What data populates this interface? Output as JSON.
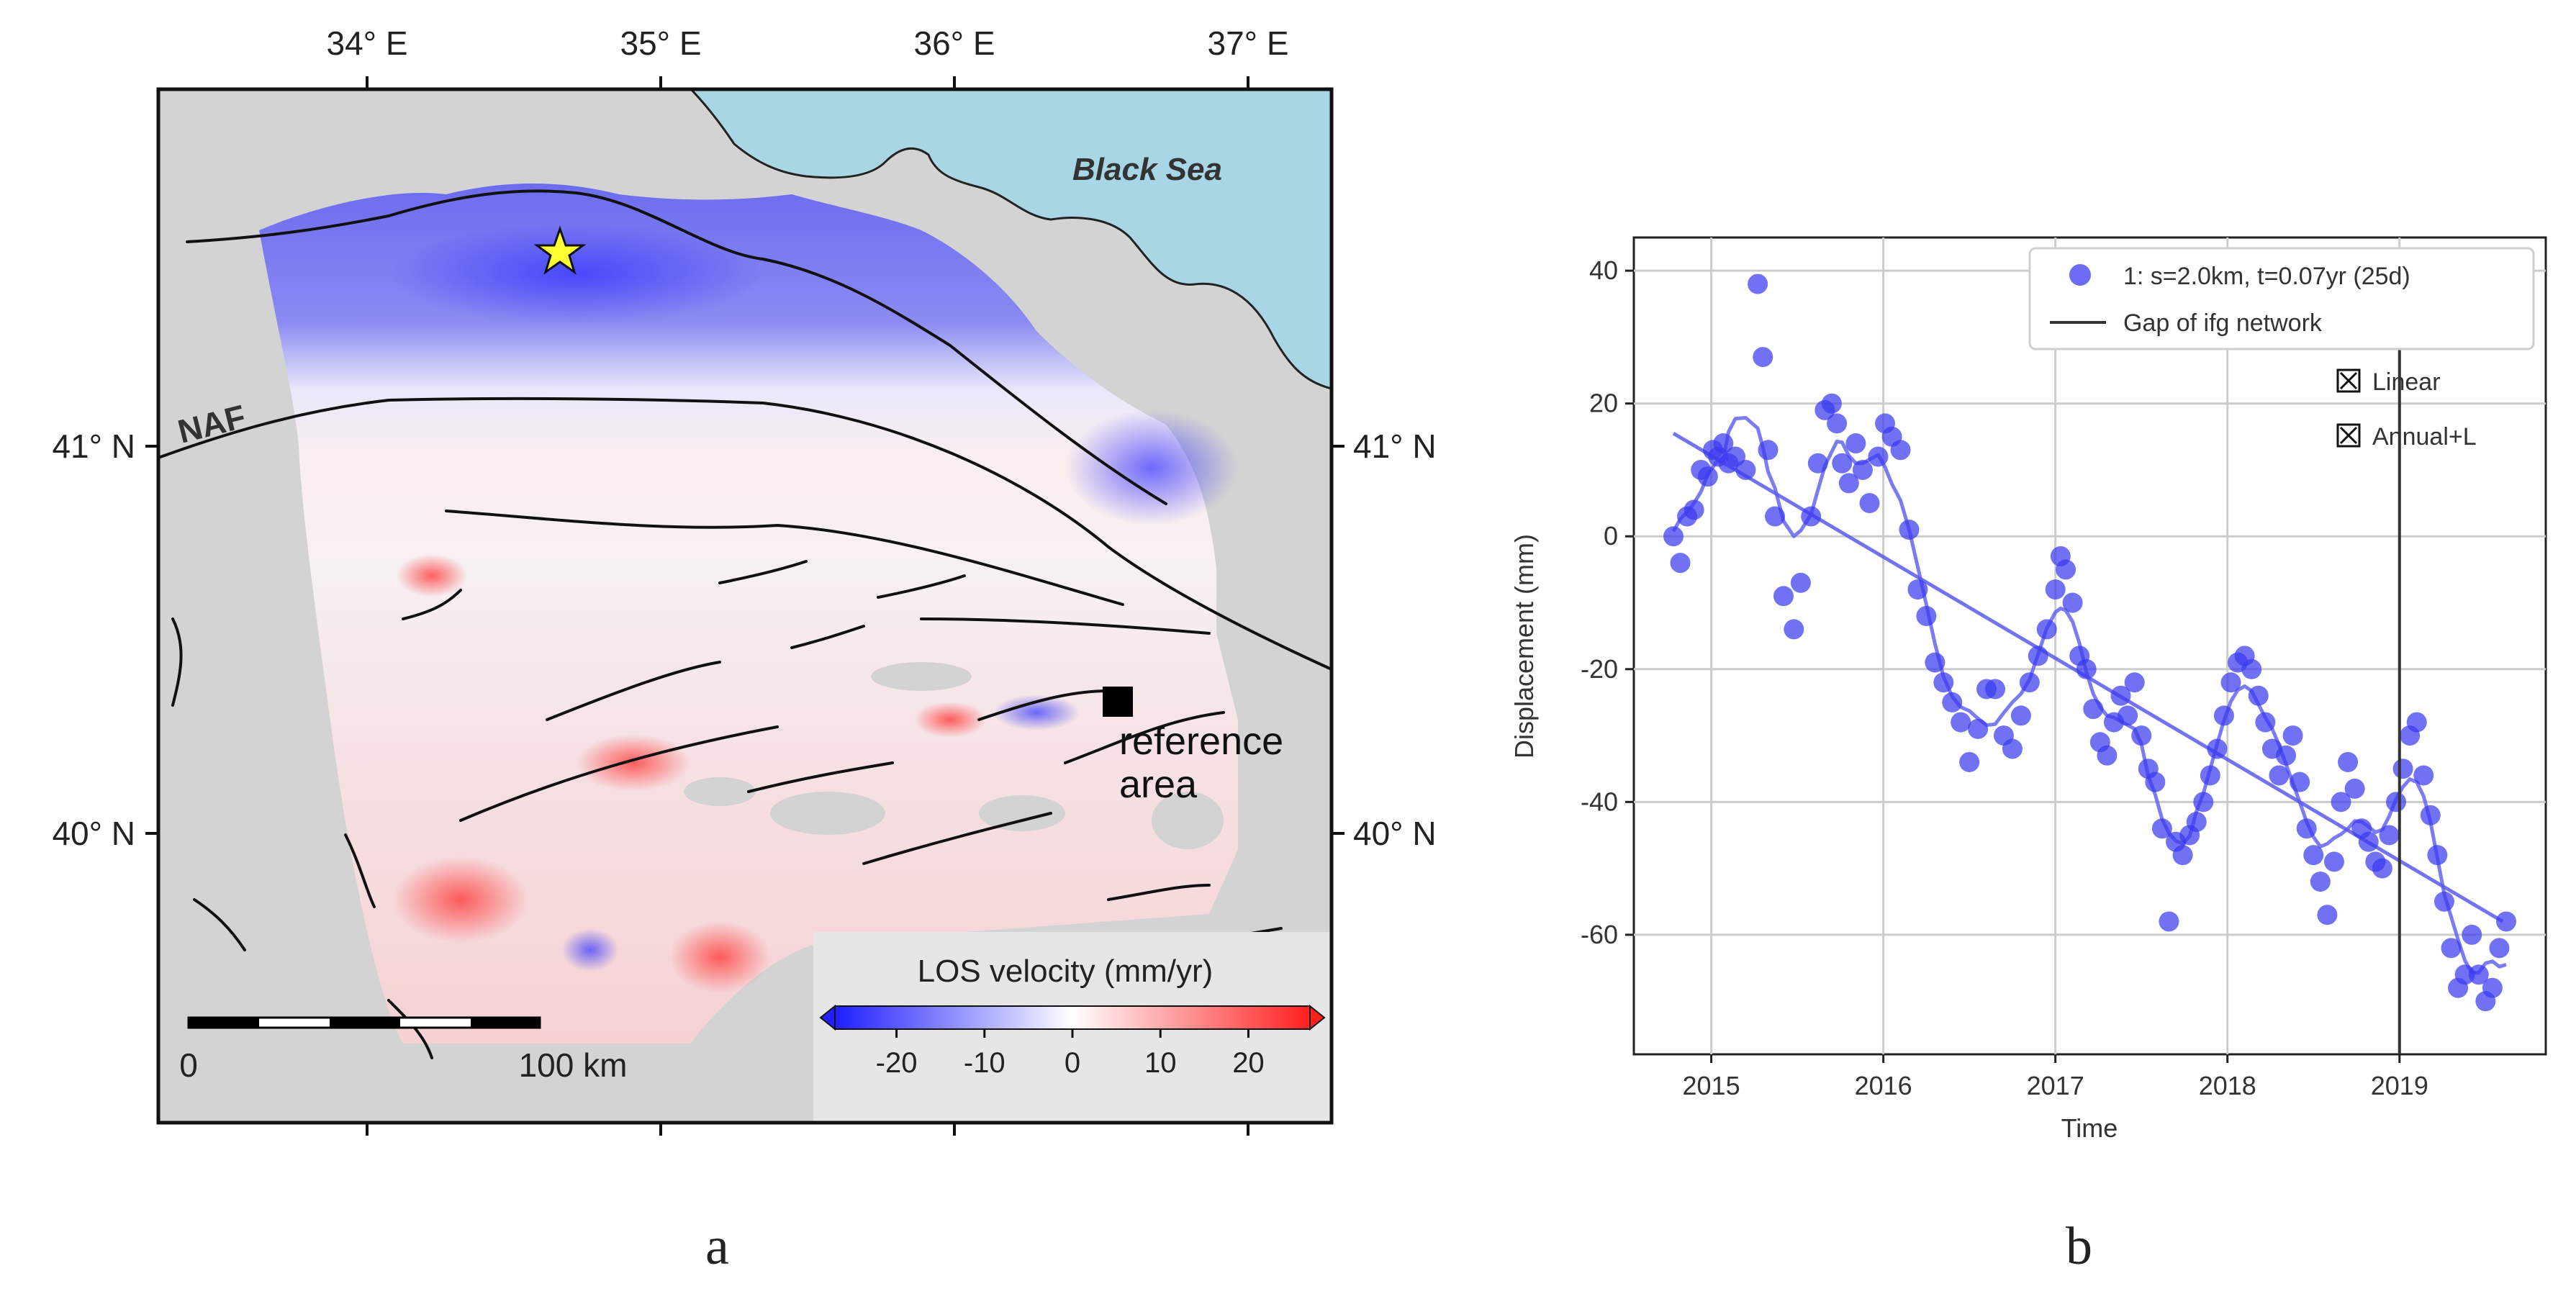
{
  "panel_a": {
    "label": "a",
    "lon_ticks": [
      "34° E",
      "35° E",
      "36° E",
      "37° E"
    ],
    "lat_ticks": [
      "41° N",
      "40° N"
    ],
    "sea_label": "Black Sea",
    "fault_label": "NAF",
    "reference_label_line1": "reference",
    "reference_label_line2": "area",
    "scalebar_start": "0",
    "scalebar_end": "100 km",
    "colorbar": {
      "title": "LOS velocity (mm/yr)",
      "ticks": [
        "-20",
        "-10",
        "0",
        "10",
        "20"
      ],
      "min": -27,
      "max": 27,
      "colors": {
        "low": "#1f1fff",
        "mid": "#ffffff",
        "high": "#ff1f1f"
      }
    },
    "colors": {
      "sea": "#a9d6e5",
      "land": "#d3d3d3",
      "star": "#ffff33"
    }
  },
  "panel_b": {
    "label": "b",
    "xlabel": "Time",
    "ylabel": "Displacement (mm)",
    "legend": {
      "series_label": "1: s=2.0km, t=0.07yr (25d)",
      "gap_label": "Gap of ifg network",
      "linear_label": "Linear",
      "annual_label": "Annual+L"
    },
    "xticks": [
      "2015",
      "2016",
      "2017",
      "2018",
      "2019"
    ],
    "yticks": [
      "40",
      "20",
      "0",
      "-20",
      "-40",
      "-60"
    ],
    "colors": {
      "points": "#3a3af0",
      "fit": "#5a5af0",
      "gap": "#333333"
    }
  },
  "chart_data": {
    "type": "scatter",
    "x_range": [
      2014.55,
      2019.85
    ],
    "y_range": [
      -78,
      45
    ],
    "xlabel": "Time",
    "ylabel": "Displacement (mm)",
    "grid": true,
    "legend_position": "top-right",
    "gap_x": 2019.0,
    "series": [
      {
        "name": "1: s=2.0km, t=0.07yr (25d)",
        "x": [
          2014.78,
          2014.82,
          2014.86,
          2014.9,
          2014.94,
          2014.98,
          2015.01,
          2015.04,
          2015.07,
          2015.1,
          2015.14,
          2015.2,
          2015.27,
          2015.3,
          2015.33,
          2015.37,
          2015.42,
          2015.48,
          2015.52,
          2015.58,
          2015.62,
          2015.66,
          2015.7,
          2015.73,
          2015.76,
          2015.8,
          2015.84,
          2015.88,
          2015.92,
          2015.97,
          2016.01,
          2016.05,
          2016.1,
          2016.15,
          2016.2,
          2016.25,
          2016.3,
          2016.35,
          2016.4,
          2016.45,
          2016.5,
          2016.55,
          2016.6,
          2016.65,
          2016.7,
          2016.75,
          2016.8,
          2016.85,
          2016.9,
          2016.95,
          2017.0,
          2017.03,
          2017.06,
          2017.1,
          2017.14,
          2017.18,
          2017.22,
          2017.26,
          2017.3,
          2017.34,
          2017.38,
          2017.42,
          2017.46,
          2017.5,
          2017.54,
          2017.58,
          2017.62,
          2017.66,
          2017.7,
          2017.74,
          2017.78,
          2017.82,
          2017.86,
          2017.9,
          2017.94,
          2017.98,
          2018.02,
          2018.06,
          2018.1,
          2018.14,
          2018.18,
          2018.22,
          2018.26,
          2018.3,
          2018.34,
          2018.38,
          2018.42,
          2018.46,
          2018.5,
          2018.54,
          2018.58,
          2018.62,
          2018.66,
          2018.7,
          2018.74,
          2018.78,
          2018.82,
          2018.86,
          2018.9,
          2018.94,
          2018.98,
          2019.02,
          2019.06,
          2019.1,
          2019.14,
          2019.18,
          2019.22,
          2019.26,
          2019.3,
          2019.34,
          2019.38,
          2019.42,
          2019.46,
          2019.5,
          2019.54,
          2019.58,
          2019.62
        ],
        "y": [
          0,
          -4,
          3,
          4,
          10,
          9,
          13,
          12,
          14,
          11,
          12,
          10,
          38,
          27,
          13,
          3,
          -9,
          -14,
          -7,
          3,
          11,
          19,
          20,
          17,
          11,
          8,
          14,
          10,
          5,
          12,
          17,
          15,
          13,
          1,
          -8,
          -12,
          -19,
          -22,
          -25,
          -28,
          -34,
          -29,
          -23,
          -23,
          -30,
          -32,
          -27,
          -22,
          -18,
          -14,
          -8,
          -3,
          -5,
          -10,
          -18,
          -20,
          -26,
          -31,
          -33,
          -28,
          -24,
          -27,
          -22,
          -30,
          -35,
          -37,
          -44,
          -58,
          -46,
          -48,
          -45,
          -43,
          -40,
          -36,
          -32,
          -27,
          -22,
          -19,
          -18,
          -20,
          -24,
          -28,
          -32,
          -36,
          -33,
          -30,
          -37,
          -44,
          -48,
          -52,
          -57,
          -49,
          -40,
          -34,
          -38,
          -44,
          -46,
          -49,
          -50,
          -45,
          -40,
          -35,
          -30,
          -28,
          -36,
          -42,
          -48,
          -55,
          -62,
          -68,
          -66,
          -60,
          -66,
          -70,
          -68,
          -62,
          -58
        ],
        "color": "#3a3af0"
      }
    ],
    "fits": [
      {
        "name": "Linear",
        "x": [
          2014.78,
          2019.6
        ],
        "y": [
          15.5,
          -58
        ]
      }
    ]
  }
}
